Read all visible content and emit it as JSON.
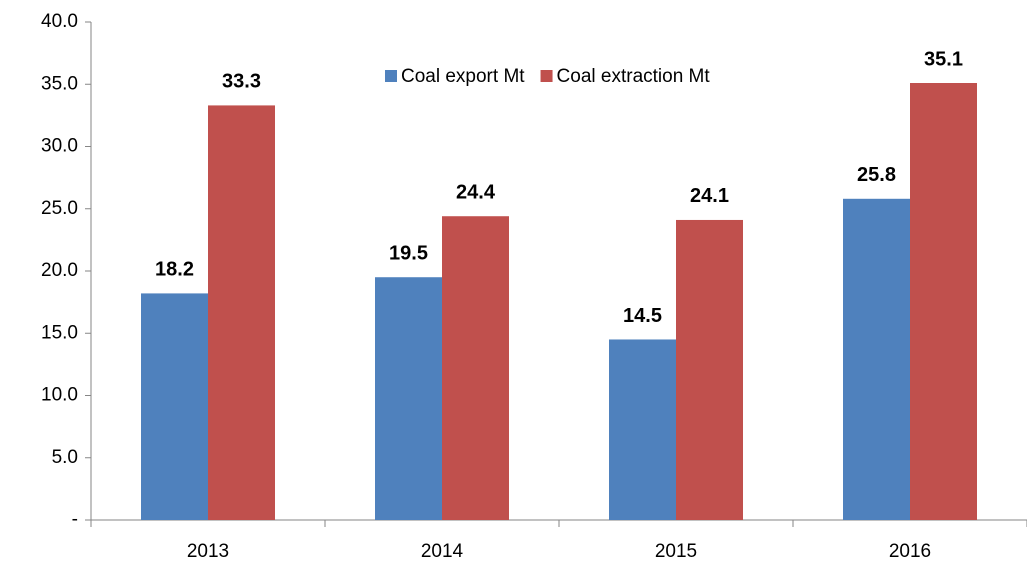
{
  "chart_data": {
    "type": "bar",
    "categories": [
      "2013",
      "2014",
      "2015",
      "2016"
    ],
    "series": [
      {
        "name": "Coal export Mt",
        "color": "#4f81bd",
        "values": [
          18.2,
          19.5,
          14.5,
          25.8
        ]
      },
      {
        "name": "Coal extraction Mt",
        "color": "#c0504d",
        "values": [
          33.3,
          24.4,
          24.1,
          35.1
        ]
      }
    ],
    "ylim": [
      0,
      40
    ],
    "yticks": [
      {
        "value": 0,
        "label": "-"
      },
      {
        "value": 5,
        "label": "5.0"
      },
      {
        "value": 10,
        "label": "10.0"
      },
      {
        "value": 15,
        "label": "15.0"
      },
      {
        "value": 20,
        "label": "20.0"
      },
      {
        "value": 25,
        "label": "25.0"
      },
      {
        "value": 30,
        "label": "30.0"
      },
      {
        "value": 35,
        "label": "35.0"
      },
      {
        "value": 40,
        "label": "40.0"
      }
    ],
    "grid": false,
    "legend": "top"
  }
}
